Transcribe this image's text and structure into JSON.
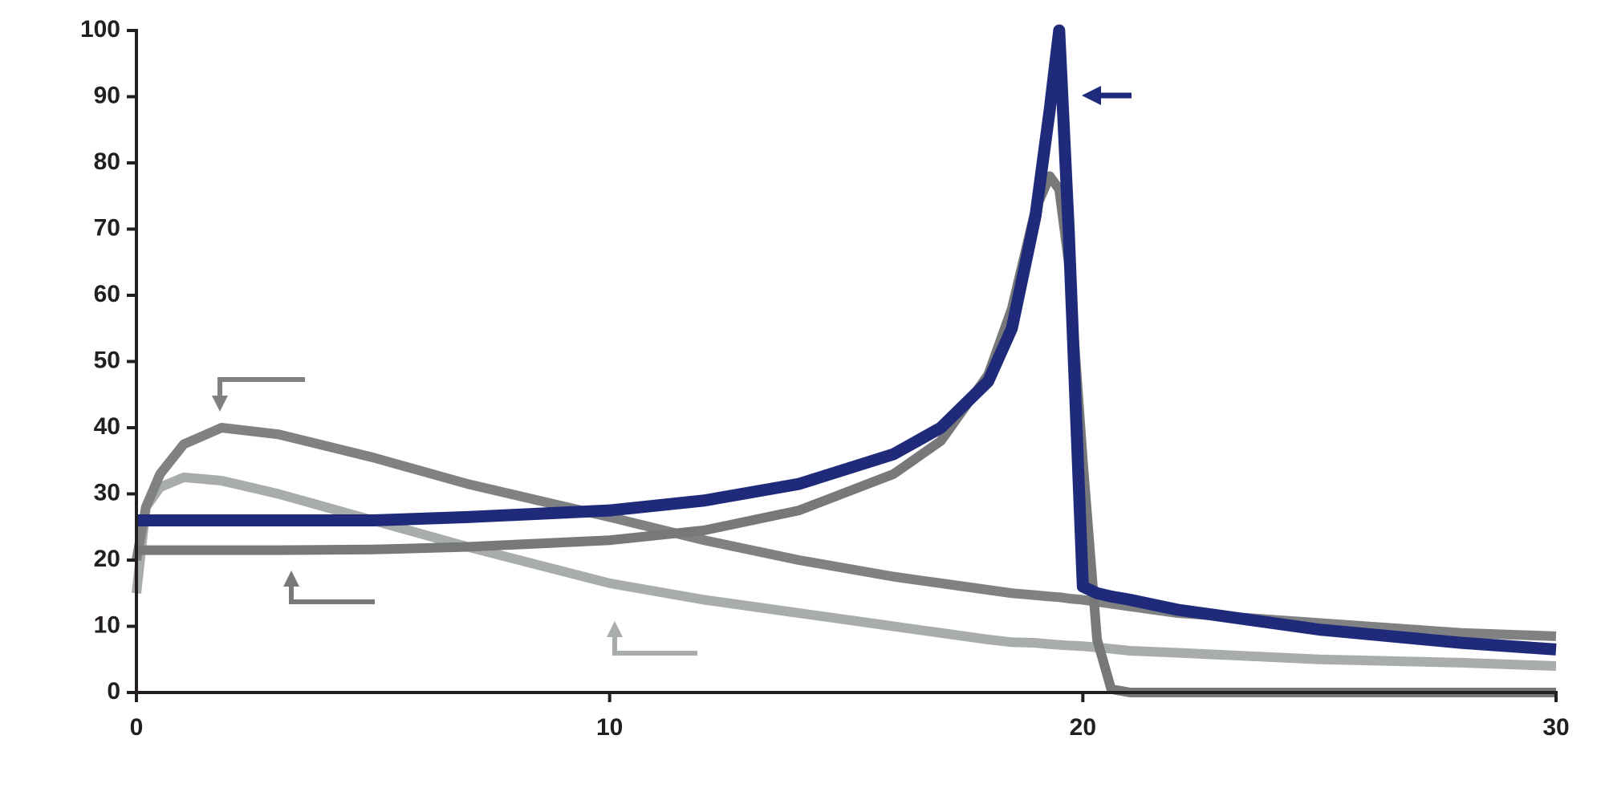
{
  "chart_data": {
    "type": "line",
    "x": [
      0,
      0.2,
      0.5,
      1,
      1.8,
      3,
      5,
      7,
      10,
      12,
      14,
      16,
      17,
      18,
      18.5,
      19,
      19.3,
      19.5,
      19.7,
      20,
      20.3,
      20.6,
      21,
      22,
      25,
      28,
      30
    ],
    "series": [
      {
        "color": "#a9acad",
        "values": [
          15,
          28,
          31,
          32.5,
          32,
          30,
          26,
          22,
          16.5,
          14,
          12,
          10,
          9,
          8,
          7.6,
          7.5,
          7.3,
          7.2,
          7.1,
          7,
          6.8,
          6.6,
          6.3,
          6,
          5,
          4.5,
          4
        ]
      },
      {
        "color": "#808183",
        "values": [
          20,
          28,
          33,
          37.5,
          40,
          39,
          35.5,
          31.5,
          26.5,
          23,
          20,
          17.5,
          16.5,
          15.5,
          15,
          14.7,
          14.5,
          14.4,
          14.2,
          14,
          13.7,
          13.4,
          13,
          12,
          10.5,
          9,
          8.5
        ]
      },
      {
        "color": "#77787a",
        "values": [
          21.5,
          21.5,
          21.5,
          21.5,
          21.5,
          21.5,
          21.6,
          22,
          23,
          24.5,
          27.5,
          33,
          38,
          48,
          58,
          73,
          78,
          76,
          65,
          35,
          8,
          0.5,
          0,
          0,
          0,
          0,
          0
        ]
      },
      {
        "color": "#1f2a7a",
        "values": [
          26,
          26,
          26,
          26,
          26,
          26,
          26,
          26.5,
          27.5,
          29,
          31.5,
          36,
          40,
          47,
          55,
          72,
          88,
          100,
          70,
          16,
          15,
          14.5,
          14,
          12.5,
          9.5,
          7.5,
          6.5
        ]
      }
    ],
    "xlim": [
      0,
      30
    ],
    "ylim": [
      0,
      100
    ],
    "xticks": [
      0,
      10,
      20,
      30
    ],
    "yticks": [
      0,
      10,
      20,
      30,
      40,
      50,
      60,
      70,
      80,
      90,
      100
    ]
  }
}
